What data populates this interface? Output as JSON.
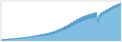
{
  "chart_data": {
    "type": "area",
    "series": [
      {
        "type": "area",
        "color": "#6ab4dc",
        "values": [
          120,
          105,
          125,
          108,
          128,
          110,
          130,
          112,
          132,
          115,
          135,
          118,
          138,
          120,
          140,
          122,
          142,
          125,
          145,
          128,
          148,
          130,
          150,
          132,
          152,
          135,
          155,
          138,
          158,
          140,
          162,
          145,
          165,
          148,
          168,
          150,
          172,
          155,
          175,
          158,
          180,
          162,
          185,
          165,
          190,
          168,
          195,
          172,
          200,
          175,
          205,
          178,
          210,
          182,
          215,
          185,
          220,
          188,
          225,
          192,
          230,
          195,
          237,
          200,
          245,
          208,
          252,
          215,
          260,
          220,
          268,
          228,
          278,
          238,
          288,
          248,
          300,
          258,
          312,
          268,
          325,
          278,
          338,
          288,
          352,
          300,
          365,
          312,
          380,
          325,
          395,
          338,
          412,
          352,
          428,
          365,
          445,
          380,
          462,
          395,
          478,
          408,
          492,
          420,
          505,
          432,
          518,
          445,
          530,
          455,
          542,
          465,
          553,
          475,
          562,
          483,
          570,
          490,
          578,
          497,
          585,
          503,
          592,
          510,
          600,
          518,
          612,
          528,
          490,
          420,
          560,
          510,
          590,
          545,
          610,
          565,
          625,
          578,
          640,
          592,
          655,
          607,
          670,
          622,
          685,
          638,
          700,
          654,
          715,
          668,
          728,
          682,
          740,
          695,
          752,
          708,
          762,
          718,
          770,
          728
        ]
      },
      {
        "type": "line",
        "color": "#4a9cc9",
        "values": [
          120,
          105,
          125,
          108,
          128,
          110,
          130,
          112,
          132,
          115,
          135,
          118,
          138,
          120,
          140,
          122,
          142,
          125,
          145,
          128,
          148,
          130,
          150,
          132,
          152,
          135,
          155,
          138,
          158,
          140,
          162,
          145,
          165,
          148,
          168,
          150,
          172,
          155,
          175,
          158,
          180,
          162,
          185,
          165,
          190,
          168,
          195,
          172,
          200,
          175,
          205,
          178,
          210,
          182,
          215,
          185,
          220,
          188,
          225,
          192,
          230,
          195,
          237,
          200,
          245,
          208,
          252,
          215,
          260,
          220,
          268,
          228,
          278,
          238,
          288,
          248,
          300,
          258,
          312,
          268,
          325,
          278,
          338,
          288,
          352,
          300,
          365,
          312,
          380,
          325,
          395,
          338,
          412,
          352,
          428,
          365,
          445,
          380,
          462,
          395,
          478,
          408,
          492,
          420,
          505,
          432,
          518,
          445,
          530,
          455,
          542,
          465,
          553,
          475,
          562,
          483,
          570,
          490,
          578,
          497,
          585,
          503,
          592,
          510,
          600,
          518,
          612,
          528,
          490,
          420,
          560,
          510,
          590,
          545,
          610,
          565,
          625,
          578,
          640,
          592,
          655,
          607,
          670,
          622,
          685,
          638,
          700,
          654,
          715,
          668,
          728,
          682,
          740,
          695,
          752,
          708,
          762,
          718,
          770,
          728
        ]
      }
    ],
    "xlim": [
      0,
      159
    ],
    "ylim": [
      95,
      808.5
    ],
    "tick_labels": false
  }
}
